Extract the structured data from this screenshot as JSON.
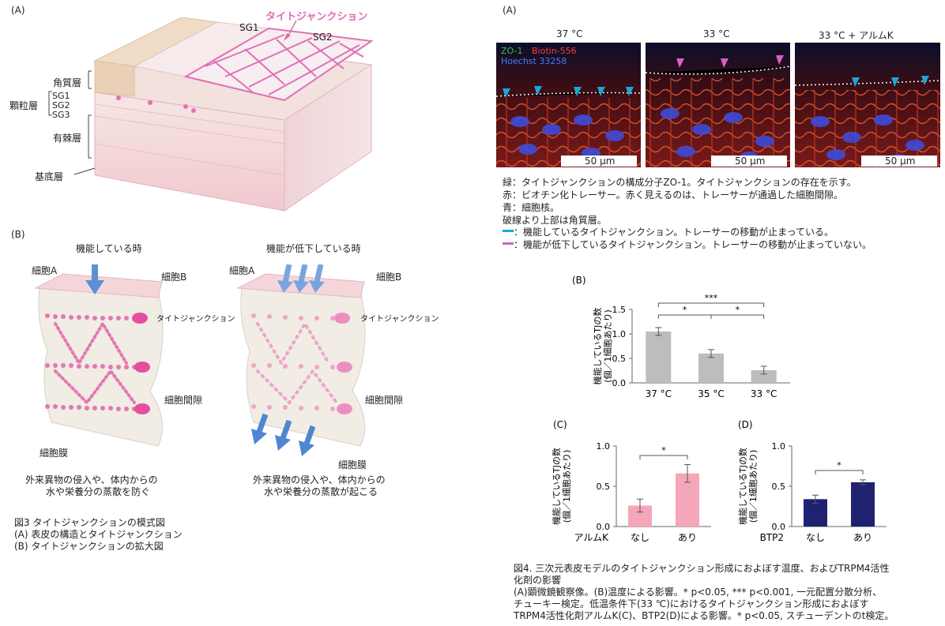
{
  "fig3": {
    "panel_a_label": "(A)",
    "panel_b_label": "(B)",
    "tj_label": "タイトジャンクション",
    "sg1": "SG1",
    "sg2": "SG2",
    "layer_kakushitsu": "角質層",
    "layer_kaken": "顆粒層",
    "sg_sub": [
      "SG1",
      "SG2",
      "SG3"
    ],
    "layer_yuutoku": "有棘層",
    "layer_kitei": "基底層",
    "function_on": "機能している時",
    "function_off": "機能が低下している時",
    "cell_a": "細胞A",
    "cell_b": "細胞B",
    "tj_small": "タイトジャンクション",
    "intercellular": "細胞間隙",
    "membrane": "細胞膜",
    "desc_on": [
      "外来異物の侵入や、体内からの",
      "水や栄養分の蒸散を防ぐ"
    ],
    "desc_off": [
      "外来異物の侵入や、体内からの",
      "水や栄養分の蒸散が起こる"
    ],
    "caption": [
      "図3 タイトジャンクションの模式図",
      "(A) 表皮の構造とタイトジャンクション",
      "(B) タイトジャンクションの拡大図"
    ]
  },
  "fig4": {
    "panel_a_label": "(A)",
    "micro_titles": [
      "37 °C",
      "33 °C",
      "33 °C + アルムK"
    ],
    "stain_zo1": "ZO-1",
    "stain_biotin": "Biotin-556",
    "stain_hoechst": "Hoechst 33258",
    "scale": "50 μm",
    "legend_lines": [
      "緑：タイトジャンクションの構成分子ZO-1。タイトジャンクションの存在を示す。",
      "赤：ビオチン化トレーサー。赤く見えるのは、トレーサーが通過した細胞間隙。",
      "青：細胞核。",
      "破線より上部は角質層。"
    ],
    "legend_cyan": "：機能しているタイトジャンクション。トレーサーの移動が止まっている。",
    "legend_magenta": "：機能が低下しているタイトジャンクション。トレーサーの移動が止まっていない。",
    "colors": {
      "cyan": "#1aa7d6",
      "magenta": "#d85fc9",
      "gray_bar": "#bdbdbd",
      "pink_bar": "#f4a7b9",
      "navy_bar": "#1f2270"
    },
    "caption": [
      "図4. 三次元表皮モデルのタイトジャンクション形成におよぼす温度、およびTRPM4活性",
      "化剤の影響",
      "(A)顕微鏡観察像。(B)温度による影響。* p<0.05, *** p<0.001, 一元配置分散分析、",
      "チューキー検定。低温条件下(33 ℃)におけるタイトジャンクション形成におよぼす",
      "TRPM4活性化剤アルムK(C)、BTP2(D)による影響。* p<0.05, スチューデントのt検定。"
    ]
  },
  "chart_data": [
    {
      "type": "bar",
      "panel": "(B)",
      "ylabel": [
        "機能しているTJの数",
        "(個／1細胞あたり)"
      ],
      "categories": [
        "37 °C",
        "35 °C",
        "33 °C"
      ],
      "values": [
        1.05,
        0.6,
        0.26
      ],
      "errors": [
        0.08,
        0.08,
        0.08
      ],
      "ylim": [
        0,
        1.5
      ],
      "yticks": [
        "0.0",
        "0.5",
        "1.0",
        "1.5"
      ],
      "significance": [
        {
          "from": 0,
          "to": 1,
          "label": "*"
        },
        {
          "from": 1,
          "to": 2,
          "label": "*"
        },
        {
          "from": 0,
          "to": 2,
          "label": "***"
        }
      ]
    },
    {
      "type": "bar",
      "panel": "(C)",
      "ylabel": [
        "機能しているTJの数",
        "(個／1細胞あたり)"
      ],
      "group_label": "アルムK",
      "categories": [
        "なし",
        "あり"
      ],
      "values": [
        0.26,
        0.66
      ],
      "errors": [
        0.08,
        0.11
      ],
      "ylim": [
        0,
        1.0
      ],
      "yticks": [
        "0.0",
        "0.5",
        "1.0"
      ],
      "significance": [
        {
          "from": 0,
          "to": 1,
          "label": "*"
        }
      ]
    },
    {
      "type": "bar",
      "panel": "(D)",
      "ylabel": [
        "機能しているTJの数",
        "(個／1細胞あたり)"
      ],
      "group_label": "BTP2",
      "categories": [
        "なし",
        "あり"
      ],
      "values": [
        0.34,
        0.55
      ],
      "errors": [
        0.05,
        0.03
      ],
      "ylim": [
        0,
        1.0
      ],
      "yticks": [
        "0.0",
        "0.5",
        "1.0"
      ],
      "significance": [
        {
          "from": 0,
          "to": 1,
          "label": "*"
        }
      ]
    }
  ]
}
